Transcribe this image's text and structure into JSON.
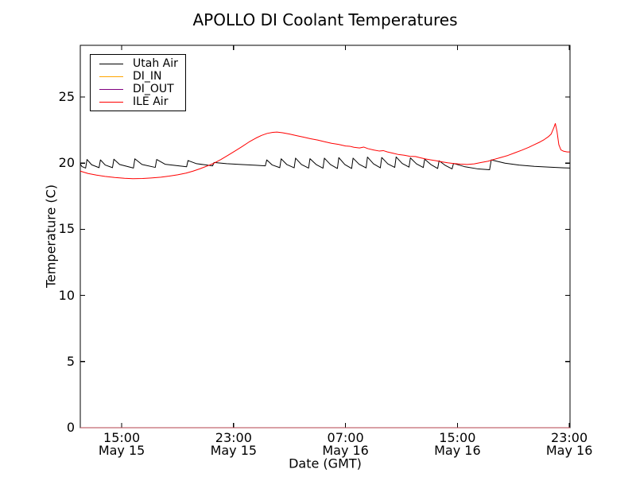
{
  "figure": {
    "background": "#ffffff",
    "axis_color": "#000000"
  },
  "chart_data": {
    "type": "line",
    "title": "APOLLO DI Coolant Temperatures",
    "xlabel": "Date (GMT)",
    "ylabel": "Temperature (C)",
    "grid": false,
    "legend_position": "upper left",
    "x_unit": "hours since May 15 00:00 GMT (May 16 = 24 + hour)",
    "xlim": [
      12.04,
      47.05
    ],
    "ylim": [
      0,
      28.91
    ],
    "yticks": [
      0,
      5,
      10,
      15,
      20,
      25
    ],
    "xticks": [
      {
        "t": 15,
        "time": "15:00",
        "date": "May 15"
      },
      {
        "t": 23,
        "time": "23:00",
        "date": "May 15"
      },
      {
        "t": 31,
        "time": "07:00",
        "date": "May 16"
      },
      {
        "t": 39,
        "time": "15:00",
        "date": "May 16"
      },
      {
        "t": 47,
        "time": "23:00",
        "date": "May 16"
      }
    ],
    "series": [
      {
        "name": "Utah Air",
        "color": "#000000",
        "opacity": 1,
        "points": [
          [
            12.04,
            19.95
          ],
          [
            12.15,
            19.75
          ],
          [
            12.42,
            19.63
          ],
          [
            12.52,
            20.28
          ],
          [
            12.85,
            19.88
          ],
          [
            13.38,
            19.66
          ],
          [
            13.48,
            20.25
          ],
          [
            13.82,
            19.86
          ],
          [
            14.34,
            19.66
          ],
          [
            14.44,
            20.3
          ],
          [
            14.85,
            19.9
          ],
          [
            15.84,
            19.63
          ],
          [
            15.94,
            20.33
          ],
          [
            16.45,
            19.9
          ],
          [
            17.4,
            19.68
          ],
          [
            17.5,
            20.28
          ],
          [
            18.1,
            19.92
          ],
          [
            19.64,
            19.73
          ],
          [
            19.74,
            20.2
          ],
          [
            20.35,
            19.96
          ],
          [
            21.5,
            19.8
          ],
          [
            21.6,
            20.05
          ],
          [
            22.5,
            19.96
          ],
          [
            23.5,
            19.9
          ],
          [
            24.6,
            19.84
          ],
          [
            25.27,
            19.8
          ],
          [
            25.37,
            20.25
          ],
          [
            25.75,
            19.87
          ],
          [
            26.3,
            19.66
          ],
          [
            26.4,
            20.33
          ],
          [
            26.8,
            19.9
          ],
          [
            27.33,
            19.65
          ],
          [
            27.43,
            20.38
          ],
          [
            27.85,
            19.9
          ],
          [
            28.36,
            19.63
          ],
          [
            28.46,
            20.34
          ],
          [
            28.9,
            19.9
          ],
          [
            29.39,
            19.62
          ],
          [
            29.49,
            20.38
          ],
          [
            29.92,
            19.9
          ],
          [
            30.42,
            19.6
          ],
          [
            30.52,
            20.42
          ],
          [
            30.95,
            19.9
          ],
          [
            31.44,
            19.6
          ],
          [
            31.54,
            20.38
          ],
          [
            31.97,
            19.92
          ],
          [
            32.47,
            19.64
          ],
          [
            32.57,
            20.46
          ],
          [
            33.0,
            19.95
          ],
          [
            33.49,
            19.65
          ],
          [
            33.59,
            20.43
          ],
          [
            34.02,
            19.95
          ],
          [
            34.52,
            19.68
          ],
          [
            34.62,
            20.47
          ],
          [
            35.05,
            19.98
          ],
          [
            35.54,
            19.7
          ],
          [
            35.64,
            20.4
          ],
          [
            36.07,
            19.95
          ],
          [
            36.56,
            19.67
          ],
          [
            36.66,
            20.3
          ],
          [
            37.1,
            19.9
          ],
          [
            37.59,
            19.6
          ],
          [
            37.69,
            20.18
          ],
          [
            38.12,
            19.84
          ],
          [
            38.62,
            19.57
          ],
          [
            38.72,
            19.98
          ],
          [
            39.5,
            19.74
          ],
          [
            40.5,
            19.56
          ],
          [
            41.3,
            19.5
          ],
          [
            41.42,
            20.25
          ],
          [
            42.4,
            20.0
          ],
          [
            43.4,
            19.86
          ],
          [
            44.5,
            19.76
          ],
          [
            45.6,
            19.7
          ],
          [
            46.6,
            19.65
          ],
          [
            47.05,
            19.63
          ]
        ]
      },
      {
        "name": "DI_IN",
        "color": "#ffa500",
        "opacity": 1,
        "points": [
          [
            12.04,
            0
          ],
          [
            47.05,
            0
          ]
        ]
      },
      {
        "name": "DI_OUT",
        "color": "#800080",
        "opacity": 0.6,
        "points": [
          [
            12.04,
            0
          ],
          [
            47.05,
            0
          ]
        ]
      },
      {
        "name": "ILE Air",
        "color": "#ff0000",
        "opacity": 1,
        "points": [
          [
            12.04,
            19.4
          ],
          [
            12.6,
            19.22
          ],
          [
            13.2,
            19.1
          ],
          [
            13.8,
            19.0
          ],
          [
            14.5,
            18.92
          ],
          [
            15.2,
            18.86
          ],
          [
            15.8,
            18.83
          ],
          [
            16.5,
            18.84
          ],
          [
            17.1,
            18.88
          ],
          [
            17.8,
            18.94
          ],
          [
            18.4,
            19.02
          ],
          [
            19.0,
            19.12
          ],
          [
            19.6,
            19.25
          ],
          [
            20.1,
            19.4
          ],
          [
            20.6,
            19.58
          ],
          [
            21.1,
            19.78
          ],
          [
            21.6,
            20.0
          ],
          [
            22.1,
            20.28
          ],
          [
            22.6,
            20.6
          ],
          [
            23.1,
            20.92
          ],
          [
            23.6,
            21.25
          ],
          [
            24.1,
            21.6
          ],
          [
            24.6,
            21.9
          ],
          [
            25.0,
            22.1
          ],
          [
            25.4,
            22.25
          ],
          [
            25.8,
            22.33
          ],
          [
            26.1,
            22.35
          ],
          [
            26.5,
            22.3
          ],
          [
            27.0,
            22.2
          ],
          [
            27.5,
            22.08
          ],
          [
            28.0,
            21.97
          ],
          [
            28.5,
            21.85
          ],
          [
            29.0,
            21.75
          ],
          [
            29.5,
            21.62
          ],
          [
            30.0,
            21.5
          ],
          [
            30.5,
            21.42
          ],
          [
            31.0,
            21.3
          ],
          [
            31.3,
            21.28
          ],
          [
            31.6,
            21.2
          ],
          [
            32.0,
            21.15
          ],
          [
            32.3,
            21.22
          ],
          [
            32.6,
            21.1
          ],
          [
            33.0,
            21.0
          ],
          [
            33.4,
            20.92
          ],
          [
            33.7,
            20.95
          ],
          [
            34.0,
            20.85
          ],
          [
            34.4,
            20.75
          ],
          [
            34.8,
            20.65
          ],
          [
            35.2,
            20.6
          ],
          [
            35.6,
            20.52
          ],
          [
            36.0,
            20.5
          ],
          [
            36.3,
            20.42
          ],
          [
            36.7,
            20.32
          ],
          [
            37.1,
            20.25
          ],
          [
            37.5,
            20.18
          ],
          [
            37.9,
            20.1
          ],
          [
            38.3,
            20.03
          ],
          [
            38.7,
            19.98
          ],
          [
            39.2,
            19.93
          ],
          [
            39.7,
            19.9
          ],
          [
            40.2,
            19.95
          ],
          [
            40.7,
            20.05
          ],
          [
            41.2,
            20.15
          ],
          [
            41.6,
            20.28
          ],
          [
            42.1,
            20.43
          ],
          [
            42.6,
            20.58
          ],
          [
            43.1,
            20.78
          ],
          [
            43.6,
            20.98
          ],
          [
            44.1,
            21.2
          ],
          [
            44.5,
            21.4
          ],
          [
            44.9,
            21.6
          ],
          [
            45.2,
            21.78
          ],
          [
            45.5,
            22.0
          ],
          [
            45.7,
            22.2
          ],
          [
            45.9,
            22.7
          ],
          [
            46.0,
            23.0
          ],
          [
            46.12,
            22.4
          ],
          [
            46.25,
            21.4
          ],
          [
            46.4,
            21.0
          ],
          [
            46.6,
            20.9
          ],
          [
            46.85,
            20.85
          ],
          [
            47.05,
            20.85
          ]
        ]
      }
    ]
  }
}
